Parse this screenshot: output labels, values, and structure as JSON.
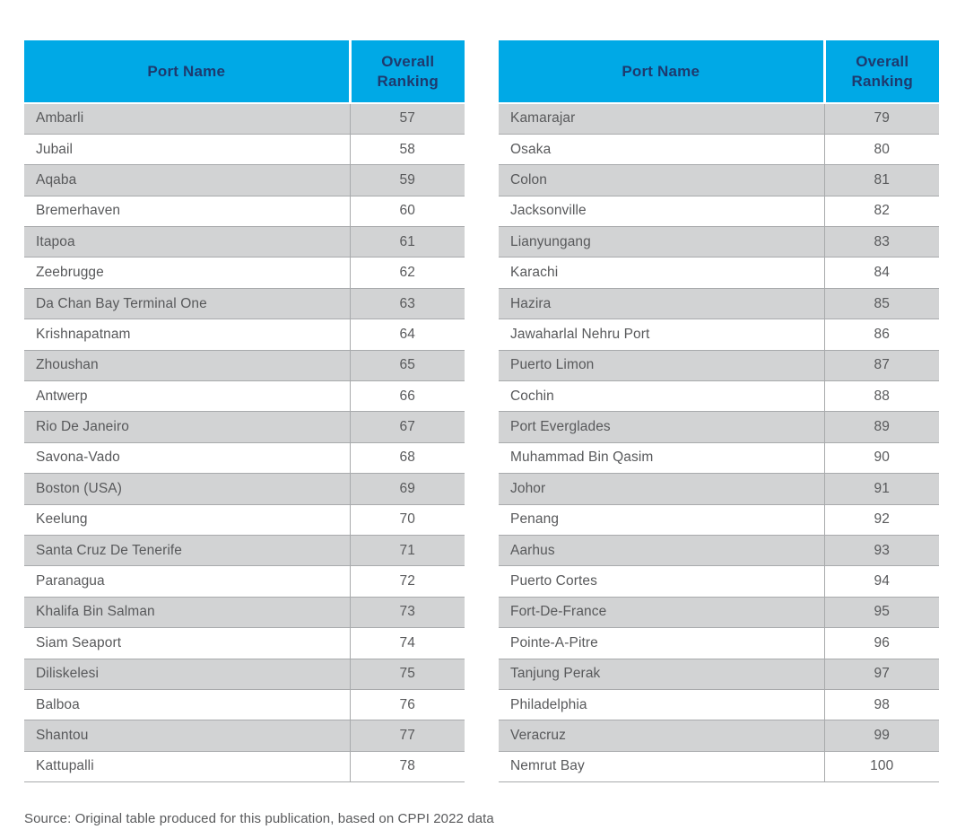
{
  "colors": {
    "header_bg": "#00A9E6",
    "header_text": "#1E3A6E",
    "row_alt_bg": "#D2D3D4",
    "row_bg": "#FFFFFF",
    "row_border": "#A8AAAC",
    "body_text": "#58595B"
  },
  "source_note": "Source: Original table produced for this publication, based on CPPI 2022 data",
  "chart_data": {
    "type": "table",
    "title": "",
    "columns": [
      "Port Name",
      "Overall Ranking"
    ],
    "tables": [
      {
        "headers": {
          "port": "Port Name",
          "ranking": "Overall Ranking"
        },
        "rows": [
          {
            "port": "Ambarli",
            "ranking": "57"
          },
          {
            "port": "Jubail",
            "ranking": "58"
          },
          {
            "port": "Aqaba",
            "ranking": "59"
          },
          {
            "port": "Bremerhaven",
            "ranking": "60"
          },
          {
            "port": "Itapoa",
            "ranking": "61"
          },
          {
            "port": "Zeebrugge",
            "ranking": "62"
          },
          {
            "port": "Da Chan Bay Terminal One",
            "ranking": "63"
          },
          {
            "port": "Krishnapatnam",
            "ranking": "64"
          },
          {
            "port": "Zhoushan",
            "ranking": "65"
          },
          {
            "port": "Antwerp",
            "ranking": "66"
          },
          {
            "port": "Rio De Janeiro",
            "ranking": "67"
          },
          {
            "port": "Savona-Vado",
            "ranking": "68"
          },
          {
            "port": "Boston (USA)",
            "ranking": "69"
          },
          {
            "port": "Keelung",
            "ranking": "70"
          },
          {
            "port": "Santa Cruz De Tenerife",
            "ranking": "71"
          },
          {
            "port": "Paranagua",
            "ranking": "72"
          },
          {
            "port": "Khalifa Bin Salman",
            "ranking": "73"
          },
          {
            "port": "Siam Seaport",
            "ranking": "74"
          },
          {
            "port": "Diliskelesi",
            "ranking": "75"
          },
          {
            "port": "Balboa",
            "ranking": "76"
          },
          {
            "port": "Shantou",
            "ranking": "77"
          },
          {
            "port": "Kattupalli",
            "ranking": "78"
          }
        ]
      },
      {
        "headers": {
          "port": "Port Name",
          "ranking": "Overall Ranking"
        },
        "rows": [
          {
            "port": "Kamarajar",
            "ranking": "79"
          },
          {
            "port": "Osaka",
            "ranking": "80"
          },
          {
            "port": "Colon",
            "ranking": "81"
          },
          {
            "port": "Jacksonville",
            "ranking": "82"
          },
          {
            "port": "Lianyungang",
            "ranking": "83"
          },
          {
            "port": "Karachi",
            "ranking": "84"
          },
          {
            "port": "Hazira",
            "ranking": "85"
          },
          {
            "port": "Jawaharlal Nehru Port",
            "ranking": "86"
          },
          {
            "port": "Puerto Limon",
            "ranking": "87"
          },
          {
            "port": "Cochin",
            "ranking": "88"
          },
          {
            "port": "Port Everglades",
            "ranking": "89"
          },
          {
            "port": "Muhammad Bin Qasim",
            "ranking": "90"
          },
          {
            "port": "Johor",
            "ranking": "91"
          },
          {
            "port": "Penang",
            "ranking": "92"
          },
          {
            "port": "Aarhus",
            "ranking": "93"
          },
          {
            "port": "Puerto Cortes",
            "ranking": "94"
          },
          {
            "port": "Fort-De-France",
            "ranking": "95"
          },
          {
            "port": "Pointe-A-Pitre",
            "ranking": "96"
          },
          {
            "port": "Tanjung Perak",
            "ranking": "97"
          },
          {
            "port": "Philadelphia",
            "ranking": "98"
          },
          {
            "port": "Veracruz",
            "ranking": "99"
          },
          {
            "port": "Nemrut Bay",
            "ranking": "100"
          }
        ]
      }
    ]
  }
}
